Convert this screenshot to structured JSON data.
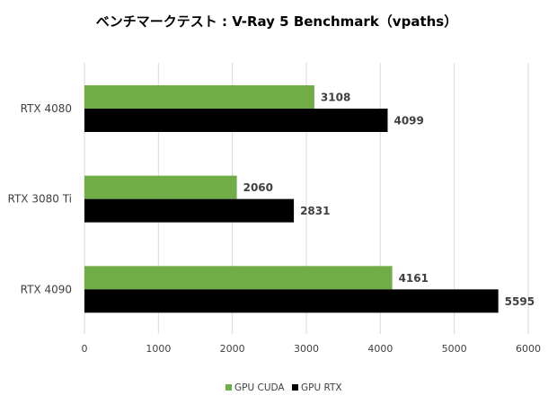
{
  "chart_data": {
    "type": "bar",
    "orientation": "horizontal",
    "title": "ベンチマークテスト : V-Ray 5 Benchmark（vpaths）",
    "categories": [
      "RTX 4080",
      "RTX 3080 Ti",
      "RTX 4090"
    ],
    "series": [
      {
        "name": "GPU CUDA",
        "color": "#70ad47",
        "values": [
          3108,
          2060,
          4161
        ]
      },
      {
        "name": "GPU RTX",
        "color": "#000000",
        "values": [
          4099,
          2831,
          5595
        ]
      }
    ],
    "xlim": [
      0,
      6000
    ],
    "xticks": [
      "0",
      "1000",
      "2000",
      "3000",
      "4000",
      "5000",
      "6000"
    ],
    "grid": true,
    "legend": "bottom",
    "data_labels": true
  }
}
